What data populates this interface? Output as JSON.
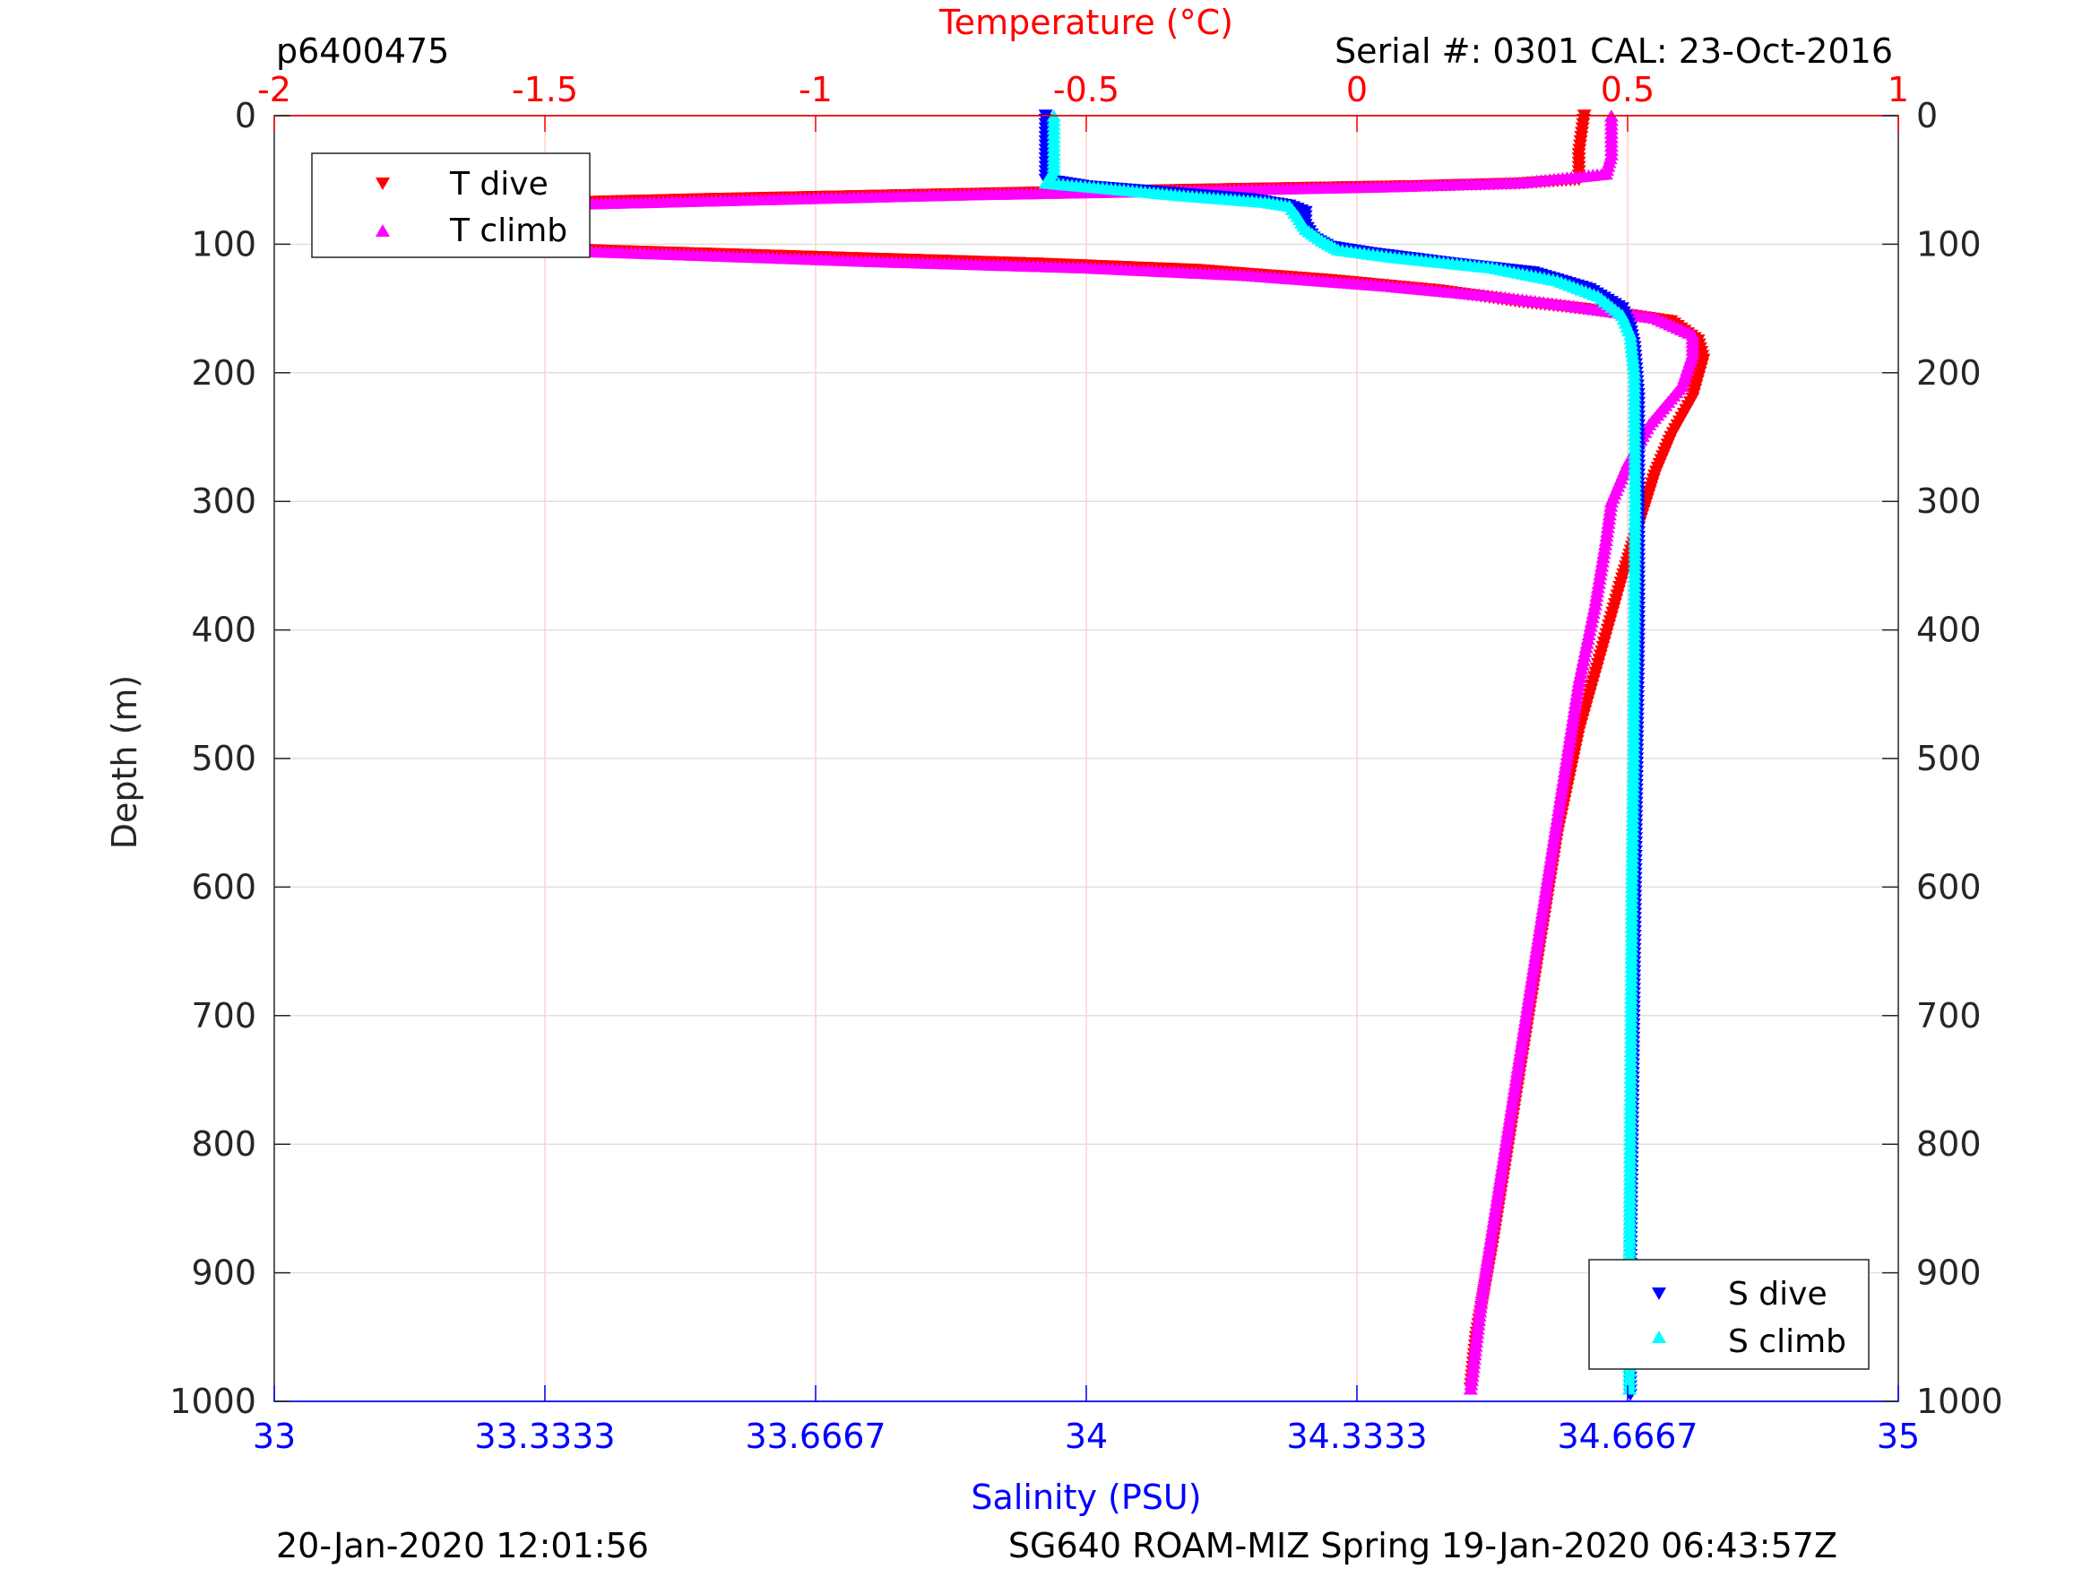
{
  "header": {
    "profile_id": "p6400475",
    "serial": "Serial #: 0301  CAL: 23-Oct-2016"
  },
  "footer": {
    "left": "20-Jan-2020 12:01:56",
    "right": "SG640 ROAM-MIZ Spring 19-Jan-2020 06:43:57Z"
  },
  "colors": {
    "temperature_axis": "#ff0000",
    "salinity_axis": "#0000ff",
    "t_dive": "#ff0000",
    "t_climb": "#ff00ff",
    "s_dive": "#0000ff",
    "s_climb": "#00ffff",
    "grid_temperature": "#ffd0d0",
    "grid_depth": "#e0e0e0"
  },
  "chart_data": {
    "type": "scatter",
    "top_axis": {
      "label": "Temperature (°C)",
      "range": [
        -2,
        1
      ],
      "ticks": [
        -2,
        -1.5,
        -1,
        -0.5,
        0,
        0.5,
        1
      ],
      "tick_labels": [
        "-2",
        "-1.5",
        "-1",
        "-0.5",
        "0",
        "0.5",
        "1"
      ]
    },
    "bottom_axis": {
      "label": "Salinity (PSU)",
      "range": [
        33,
        35
      ],
      "ticks": [
        33,
        33.3333,
        33.6667,
        34,
        34.3333,
        34.6667,
        35
      ],
      "tick_labels": [
        "33",
        "33.3333",
        "33.6667",
        "34",
        "34.3333",
        "34.6667",
        "35"
      ]
    },
    "y_axis": {
      "label": "Depth (m)",
      "range": [
        0,
        1000
      ],
      "reversed": true,
      "ticks": [
        0,
        100,
        200,
        300,
        400,
        500,
        600,
        700,
        800,
        900,
        1000
      ],
      "tick_labels": [
        "0",
        "100",
        "200",
        "300",
        "400",
        "500",
        "600",
        "700",
        "800",
        "900",
        "1000"
      ]
    },
    "grid": true,
    "legends": [
      {
        "position": "top-left",
        "entries": [
          "T dive",
          "T climb"
        ]
      },
      {
        "position": "bottom-right",
        "entries": [
          "S dive",
          "S climb"
        ]
      }
    ],
    "series": [
      {
        "name": "T dive",
        "axis": "temperature",
        "marker": "triangle-down",
        "points": [
          [
            0.42,
            0
          ],
          [
            0.41,
            30
          ],
          [
            0.41,
            50
          ],
          [
            0.3,
            53
          ],
          [
            0.1,
            55
          ],
          [
            -0.2,
            57
          ],
          [
            -0.6,
            60
          ],
          [
            -1.2,
            65
          ],
          [
            -1.7,
            70
          ],
          [
            -1.82,
            75
          ],
          [
            -1.82,
            85
          ],
          [
            -1.82,
            95
          ],
          [
            -1.7,
            100
          ],
          [
            -1.4,
            105
          ],
          [
            -1.0,
            110
          ],
          [
            -0.6,
            115
          ],
          [
            -0.3,
            120
          ],
          [
            -0.05,
            128
          ],
          [
            0.15,
            136
          ],
          [
            0.3,
            145
          ],
          [
            0.45,
            152
          ],
          [
            0.58,
            160
          ],
          [
            0.63,
            175
          ],
          [
            0.64,
            190
          ],
          [
            0.62,
            220
          ],
          [
            0.58,
            250
          ],
          [
            0.55,
            280
          ],
          [
            0.52,
            320
          ],
          [
            0.49,
            360
          ],
          [
            0.45,
            420
          ],
          [
            0.41,
            480
          ],
          [
            0.37,
            560
          ],
          [
            0.34,
            640
          ],
          [
            0.31,
            720
          ],
          [
            0.28,
            800
          ],
          [
            0.25,
            880
          ],
          [
            0.22,
            950
          ],
          [
            0.21,
            990
          ]
        ]
      },
      {
        "name": "T climb",
        "axis": "temperature",
        "marker": "triangle-up",
        "points": [
          [
            0.47,
            0
          ],
          [
            0.47,
            30
          ],
          [
            0.46,
            45
          ],
          [
            0.3,
            52
          ],
          [
            0.05,
            55
          ],
          [
            -0.3,
            58
          ],
          [
            -0.7,
            61
          ],
          [
            -1.2,
            66
          ],
          [
            -1.6,
            70
          ],
          [
            -1.78,
            76
          ],
          [
            -1.79,
            85
          ],
          [
            -1.79,
            95
          ],
          [
            -1.65,
            102
          ],
          [
            -1.3,
            107
          ],
          [
            -0.9,
            113
          ],
          [
            -0.5,
            118
          ],
          [
            -0.2,
            124
          ],
          [
            0.05,
            132
          ],
          [
            0.25,
            140
          ],
          [
            0.4,
            148
          ],
          [
            0.55,
            157
          ],
          [
            0.62,
            170
          ],
          [
            0.62,
            185
          ],
          [
            0.6,
            210
          ],
          [
            0.54,
            240
          ],
          [
            0.5,
            270
          ],
          [
            0.47,
            300
          ],
          [
            0.46,
            330
          ],
          [
            0.44,
            380
          ],
          [
            0.41,
            440
          ],
          [
            0.38,
            520
          ],
          [
            0.35,
            600
          ],
          [
            0.32,
            680
          ],
          [
            0.29,
            760
          ],
          [
            0.26,
            840
          ],
          [
            0.23,
            920
          ],
          [
            0.21,
            990
          ]
        ]
      },
      {
        "name": "S dive",
        "axis": "salinity",
        "marker": "triangle-down",
        "points": [
          [
            33.95,
            0
          ],
          [
            33.95,
            50
          ],
          [
            34.0,
            55
          ],
          [
            34.1,
            60
          ],
          [
            34.2,
            65
          ],
          [
            34.25,
            70
          ],
          [
            34.27,
            75
          ],
          [
            34.27,
            85
          ],
          [
            34.28,
            95
          ],
          [
            34.3,
            102
          ],
          [
            34.35,
            107
          ],
          [
            34.45,
            115
          ],
          [
            34.55,
            122
          ],
          [
            34.62,
            135
          ],
          [
            34.66,
            150
          ],
          [
            34.67,
            165
          ],
          [
            34.675,
            180
          ],
          [
            34.68,
            220
          ],
          [
            34.68,
            300
          ],
          [
            34.68,
            400
          ],
          [
            34.678,
            500
          ],
          [
            34.676,
            600
          ],
          [
            34.674,
            700
          ],
          [
            34.672,
            800
          ],
          [
            34.67,
            900
          ],
          [
            34.67,
            995
          ]
        ]
      },
      {
        "name": "S climb",
        "axis": "salinity",
        "marker": "triangle-up",
        "points": [
          [
            33.96,
            0
          ],
          [
            33.96,
            30
          ],
          [
            33.96,
            42
          ],
          [
            33.95,
            52
          ],
          [
            34.02,
            56
          ],
          [
            34.12,
            62
          ],
          [
            34.22,
            67
          ],
          [
            34.25,
            70
          ],
          [
            34.26,
            78
          ],
          [
            34.27,
            88
          ],
          [
            34.29,
            97
          ],
          [
            34.31,
            104
          ],
          [
            34.38,
            110
          ],
          [
            34.5,
            118
          ],
          [
            34.58,
            128
          ],
          [
            34.63,
            140
          ],
          [
            34.66,
            155
          ],
          [
            34.67,
            170
          ],
          [
            34.675,
            200
          ],
          [
            34.676,
            300
          ],
          [
            34.675,
            400
          ],
          [
            34.674,
            500
          ],
          [
            34.672,
            600
          ],
          [
            34.671,
            700
          ],
          [
            34.67,
            800
          ],
          [
            34.669,
            900
          ],
          [
            34.669,
            990
          ]
        ]
      }
    ]
  }
}
